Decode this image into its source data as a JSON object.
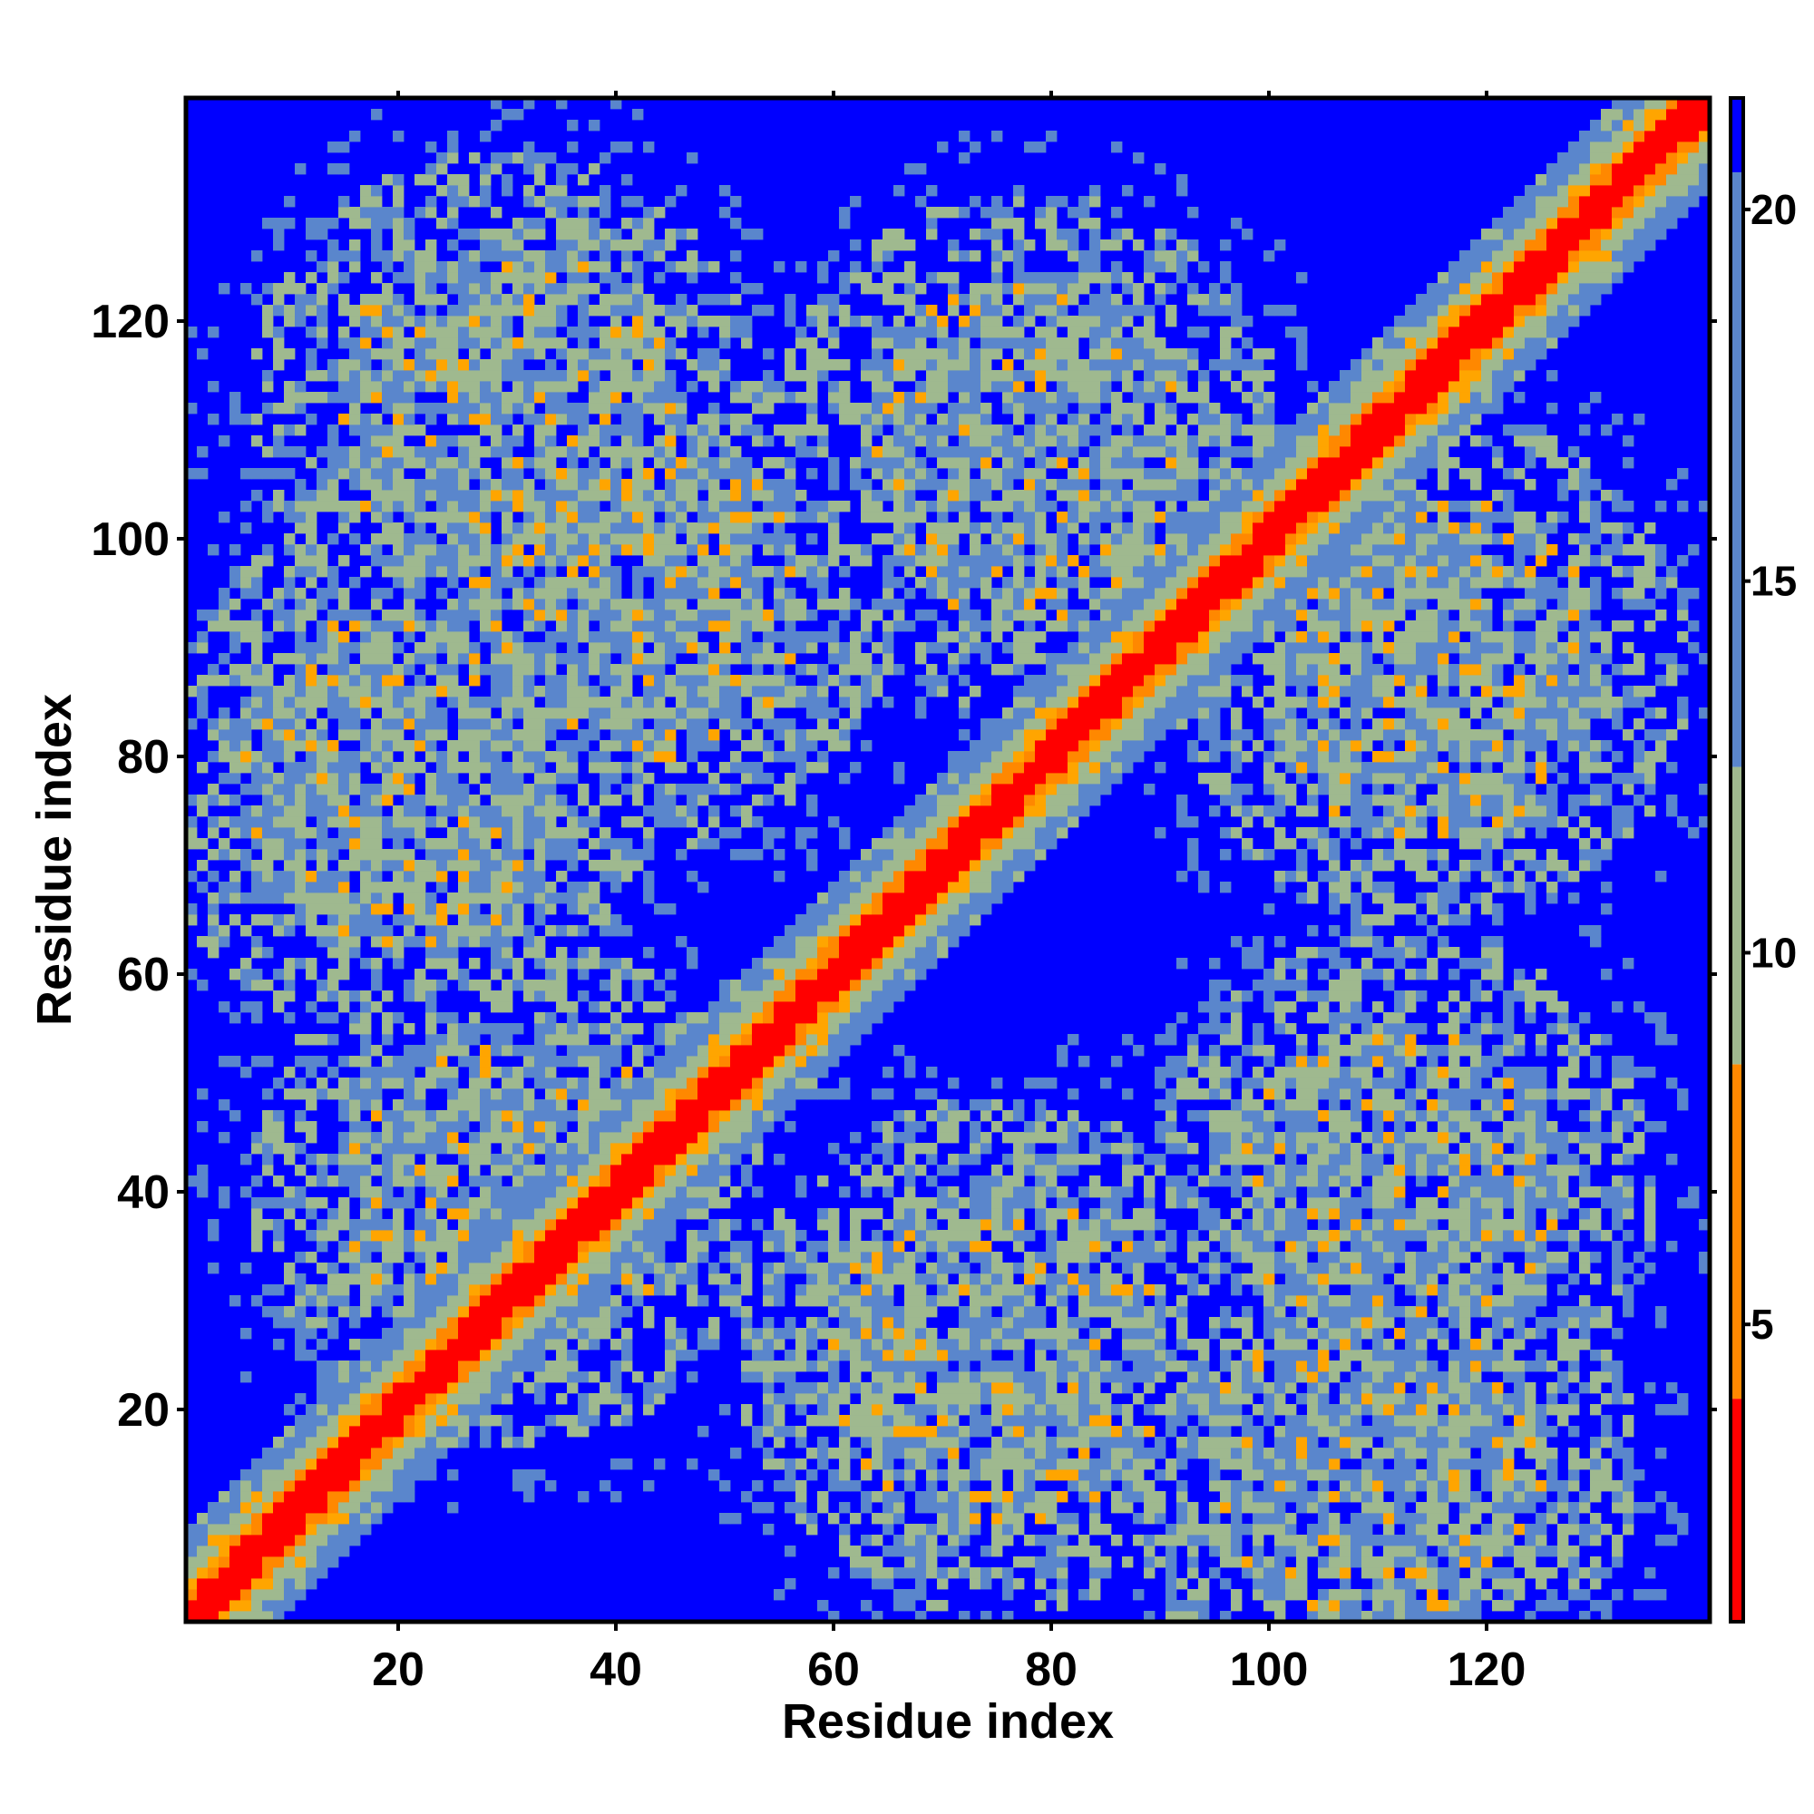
{
  "chart_data": {
    "type": "heatmap",
    "title": "",
    "xlabel": "Residue index",
    "ylabel": "Residue index",
    "x_ticks": [
      "20",
      "40",
      "60",
      "80",
      "100",
      "120"
    ],
    "y_ticks": [
      "20",
      "40",
      "60",
      "80",
      "100",
      "120"
    ],
    "xlim": [
      1,
      140
    ],
    "ylim": [
      1,
      140
    ],
    "grid": false,
    "colorbar": {
      "ticks": [
        "5",
        "10",
        "15",
        "20"
      ],
      "range": [
        1,
        21.5
      ],
      "position": "right",
      "colors": {
        "red": "#ff0000",
        "orange": "#ff8800",
        "amber": "#ffa500",
        "sage": "#9fb98f",
        "steel": "#5a86cc",
        "blue": "#0000ff"
      }
    },
    "contact_band_centers": [
      {
        "x": 30,
        "y": 40
      },
      {
        "x": 20,
        "y": 78
      },
      {
        "x": 42,
        "y": 95
      },
      {
        "x": 78,
        "y": 108
      },
      {
        "x": 115,
        "y": 88
      },
      {
        "x": 112,
        "y": 40
      },
      {
        "x": 75,
        "y": 25
      },
      {
        "x": 30,
        "y": 112
      },
      {
        "x": 110,
        "y": 15
      }
    ]
  }
}
